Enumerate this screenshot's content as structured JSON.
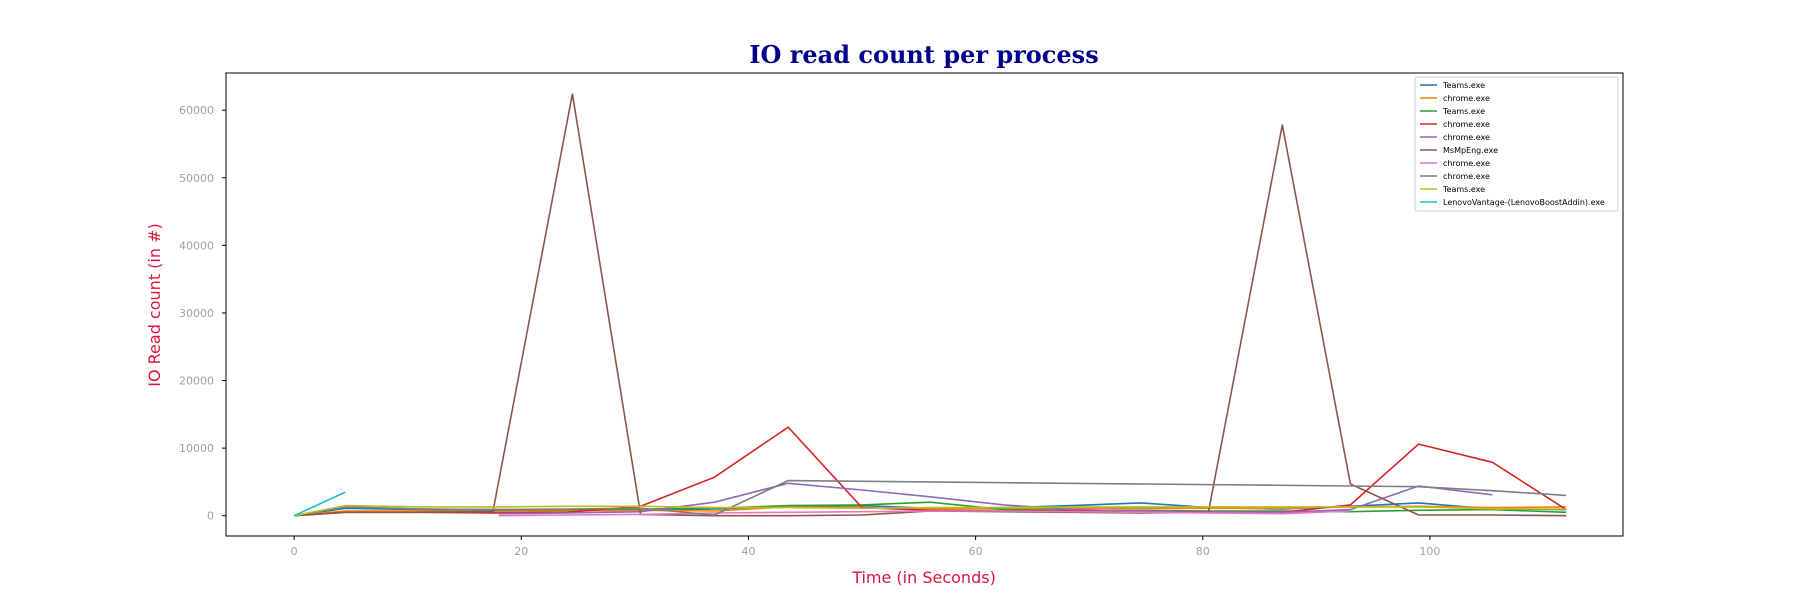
{
  "chart_data": {
    "type": "line",
    "title": "IO read count per process",
    "xlabel": "Time (in Seconds)",
    "ylabel": "IO Read count (in #)",
    "xlim": [
      -6,
      117
    ],
    "ylim": [
      -3000,
      65500
    ],
    "xticks": [
      0,
      20,
      40,
      60,
      80,
      100
    ],
    "yticks": [
      0,
      10000,
      20000,
      30000,
      40000,
      50000,
      60000
    ],
    "grid": false,
    "legend_position": "top-right",
    "series": [
      {
        "name": "Teams.exe",
        "color": "#1f77b4",
        "points": [
          [
            0,
            0
          ],
          [
            4.5,
            1100
          ],
          [
            11,
            900
          ],
          [
            17.5,
            800
          ],
          [
            24,
            800
          ],
          [
            30.5,
            800
          ],
          [
            37,
            1000
          ],
          [
            43.5,
            1300
          ],
          [
            50,
            1500
          ],
          [
            56,
            1100
          ],
          [
            62.5,
            1200
          ],
          [
            68.5,
            1500
          ],
          [
            74.5,
            1900
          ],
          [
            80.5,
            1200
          ],
          [
            87,
            1000
          ],
          [
            93,
            1400
          ],
          [
            99,
            1900
          ],
          [
            105.5,
            1000
          ],
          [
            112,
            900
          ]
        ]
      },
      {
        "name": "chrome.exe",
        "color": "#ff7f0e",
        "points": [
          [
            0,
            0
          ],
          [
            4.5,
            700
          ],
          [
            11,
            700
          ],
          [
            17.5,
            600
          ],
          [
            24,
            700
          ],
          [
            30.5,
            800
          ],
          [
            37,
            700
          ],
          [
            43.5,
            1300
          ],
          [
            50,
            1200
          ],
          [
            56,
            1000
          ],
          [
            62.5,
            1000
          ],
          [
            68.5,
            1100
          ],
          [
            74.5,
            1100
          ],
          [
            80.5,
            1100
          ],
          [
            87,
            1100
          ],
          [
            93,
            1300
          ],
          [
            99,
            1400
          ],
          [
            105.5,
            1200
          ],
          [
            112,
            1300
          ]
        ]
      },
      {
        "name": "Teams.exe",
        "color": "#2ca02c",
        "points": [
          [
            0,
            0
          ],
          [
            4.5,
            1300
          ],
          [
            11,
            1000
          ],
          [
            17.5,
            900
          ],
          [
            24,
            900
          ],
          [
            30.5,
            1000
          ],
          [
            37,
            1100
          ],
          [
            43.5,
            1500
          ],
          [
            50,
            1600
          ],
          [
            56,
            2000
          ],
          [
            62.5,
            900
          ],
          [
            68.5,
            800
          ],
          [
            74.5,
            800
          ],
          [
            80.5,
            700
          ],
          [
            87,
            700
          ],
          [
            93,
            600
          ],
          [
            99,
            800
          ],
          [
            105.5,
            900
          ],
          [
            112,
            500
          ]
        ]
      },
      {
        "name": "chrome.exe",
        "color": "#d62728",
        "points": [
          [
            0,
            0
          ],
          [
            4.5,
            500
          ],
          [
            11,
            500
          ],
          [
            17.5,
            400
          ],
          [
            24,
            500
          ],
          [
            30.5,
            1400
          ],
          [
            37,
            5700
          ],
          [
            43.5,
            13100
          ],
          [
            50,
            1200
          ],
          [
            56,
            800
          ],
          [
            62.5,
            700
          ],
          [
            68.5,
            700
          ],
          [
            74.5,
            700
          ],
          [
            80.5,
            600
          ],
          [
            87,
            500
          ],
          [
            93,
            1600
          ],
          [
            99,
            10600
          ],
          [
            105.5,
            7900
          ],
          [
            112,
            900
          ]
        ]
      },
      {
        "name": "chrome.exe",
        "color": "#9467bd",
        "points": [
          [
            18,
            300
          ],
          [
            24,
            400
          ],
          [
            30.5,
            600
          ],
          [
            37,
            2000
          ],
          [
            43.5,
            4800
          ],
          [
            50,
            3800
          ],
          [
            56,
            2800
          ],
          [
            62.5,
            1600
          ],
          [
            68.5,
            900
          ],
          [
            74.5,
            700
          ],
          [
            80.5,
            600
          ],
          [
            87,
            500
          ],
          [
            93,
            900
          ],
          [
            99,
            4400
          ],
          [
            105.5,
            3100
          ]
        ]
      },
      {
        "name": "MsMpEng.exe",
        "color": "#8c564b",
        "points": [
          [
            0,
            0
          ],
          [
            4.5,
            500
          ],
          [
            11,
            500
          ],
          [
            17.5,
            600
          ],
          [
            24.5,
            62400
          ],
          [
            30.5,
            200
          ],
          [
            37,
            0
          ],
          [
            43.5,
            0
          ],
          [
            50,
            100
          ],
          [
            56,
            700
          ],
          [
            62.5,
            600
          ],
          [
            68.5,
            500
          ],
          [
            74.5,
            400
          ],
          [
            80.5,
            500
          ],
          [
            87,
            57800
          ],
          [
            93,
            4700
          ],
          [
            99,
            100
          ],
          [
            105.5,
            100
          ],
          [
            112,
            0
          ]
        ]
      },
      {
        "name": "chrome.exe",
        "color": "#e377c2",
        "points": [
          [
            18,
            0
          ],
          [
            24,
            100
          ],
          [
            30.5,
            200
          ],
          [
            37,
            400
          ],
          [
            43.5,
            500
          ],
          [
            50,
            600
          ],
          [
            56,
            700
          ],
          [
            62.5,
            700
          ],
          [
            68.5,
            600
          ],
          [
            74.5,
            500
          ],
          [
            80.5,
            400
          ],
          [
            87,
            300
          ],
          [
            93,
            700
          ]
        ]
      },
      {
        "name": "chrome.exe",
        "color": "#7f7f7f",
        "points": [
          [
            0,
            0
          ],
          [
            4.5,
            1300
          ],
          [
            11,
            1000
          ],
          [
            17.5,
            900
          ],
          [
            24,
            1000
          ],
          [
            30.5,
            1100
          ],
          [
            37,
            100
          ],
          [
            43.5,
            5200
          ],
          [
            93,
            4400
          ],
          [
            99,
            4300
          ],
          [
            105.5,
            3700
          ],
          [
            112,
            3000
          ]
        ]
      },
      {
        "name": "Teams.exe",
        "color": "#bcbd22",
        "points": [
          [
            0,
            0
          ],
          [
            4.5,
            1500
          ],
          [
            11,
            1300
          ],
          [
            17.5,
            1300
          ],
          [
            24,
            1400
          ],
          [
            30.5,
            1400
          ],
          [
            37,
            1200
          ],
          [
            43.5,
            1200
          ],
          [
            50,
            1100
          ],
          [
            56,
            1200
          ],
          [
            62.5,
            1200
          ],
          [
            68.5,
            1300
          ],
          [
            74.5,
            1300
          ],
          [
            80.5,
            1300
          ],
          [
            87,
            1300
          ],
          [
            93,
            1300
          ],
          [
            99,
            1300
          ],
          [
            105.5,
            1000
          ],
          [
            112,
            1000
          ]
        ]
      },
      {
        "name": "LenovoVantage-(LenovoBoostAddin).exe",
        "color": "#17becf",
        "points": [
          [
            0,
            0
          ],
          [
            4.5,
            3500
          ]
        ]
      }
    ]
  }
}
